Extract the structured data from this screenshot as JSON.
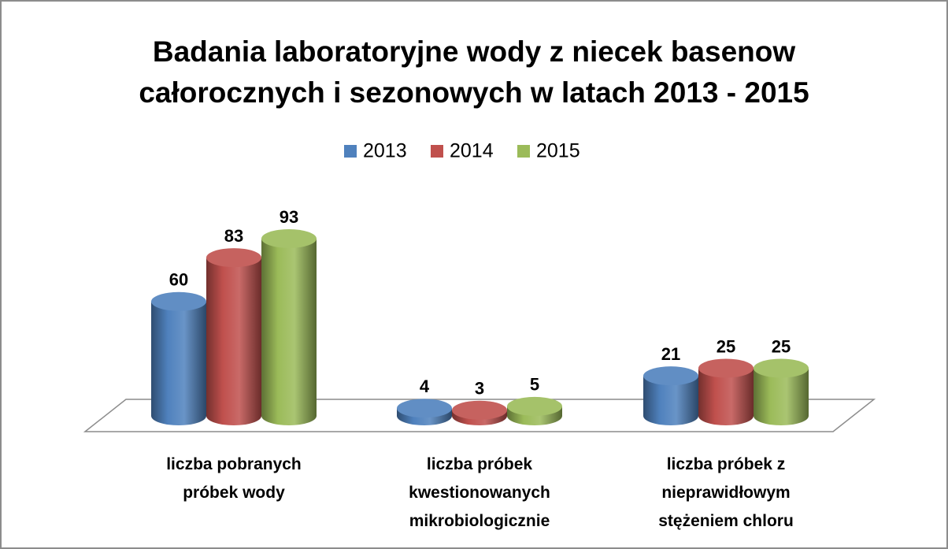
{
  "chart_data": {
    "type": "bar3d",
    "title": "Badania laboratoryjne wody z niecek basenow\ncałorocznych i sezonowych w latach 2013 - 2015",
    "categories": [
      "liczba pobranych\npróbek wody",
      "liczba próbek\nkwestionowanych\nmikrobiologicznie",
      "liczba próbek z\nnieprawidłowym\nstężeniem chloru"
    ],
    "series": [
      {
        "name": "2013",
        "color": "#4f81bd",
        "values": [
          60,
          4,
          21
        ]
      },
      {
        "name": "2014",
        "color": "#c0504d",
        "values": [
          83,
          3,
          25
        ]
      },
      {
        "name": "2015",
        "color": "#9bbb59",
        "values": [
          93,
          5,
          25
        ]
      }
    ],
    "legend": "top"
  }
}
